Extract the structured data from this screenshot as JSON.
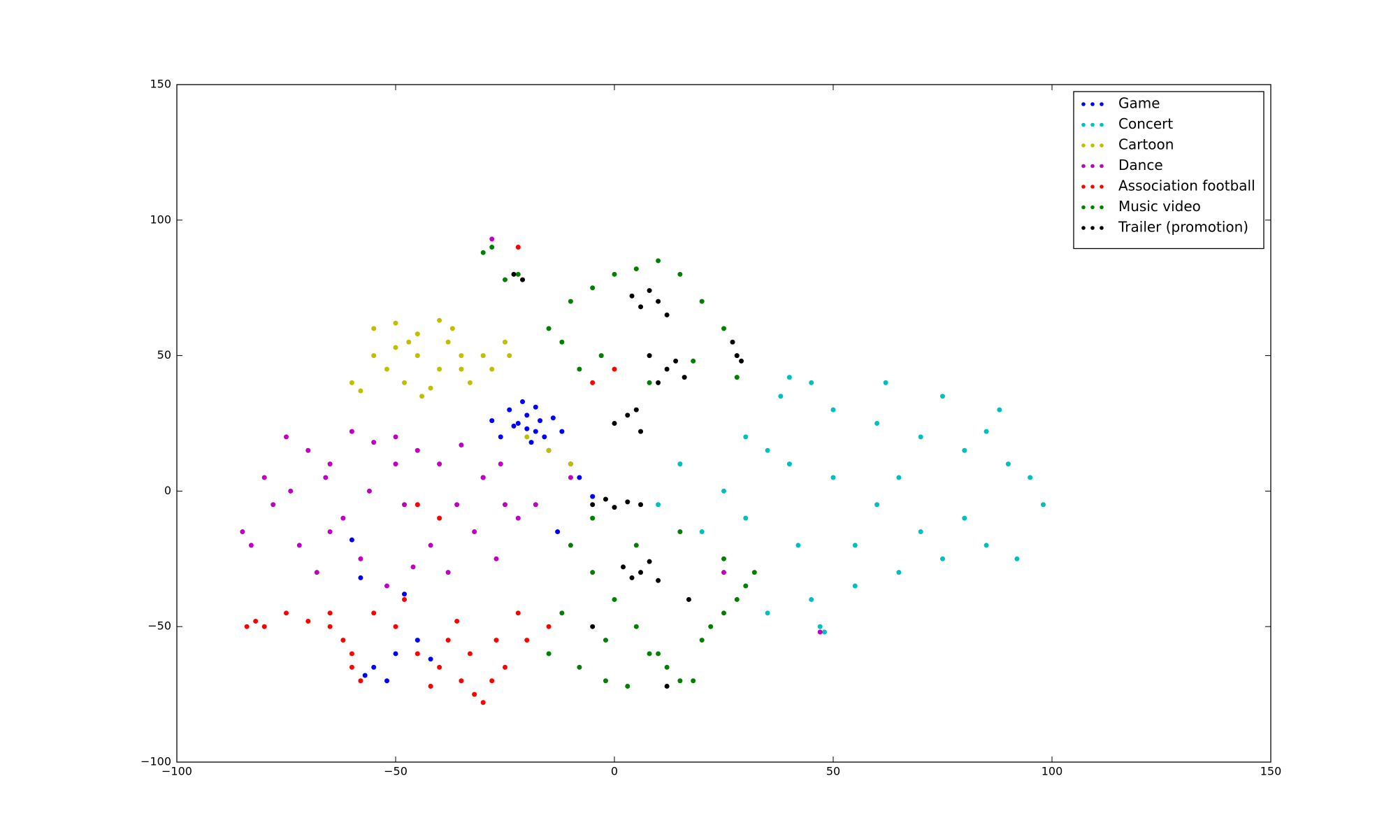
{
  "chart_data": {
    "type": "scatter",
    "xlim": [
      -100,
      150
    ],
    "ylim": [
      -100,
      150
    ],
    "xticks": [
      {
        "value": -100,
        "label": "−100"
      },
      {
        "value": -50,
        "label": "−50"
      },
      0,
      50,
      100,
      150
    ],
    "yticks": [
      {
        "value": -100,
        "label": "−100"
      },
      {
        "value": -50,
        "label": "−50"
      },
      0,
      50,
      100,
      150
    ],
    "grid": false,
    "legend": "upper right",
    "series": [
      {
        "name": "Game",
        "color": "#0000ff",
        "x": [
          -22,
          -20,
          -18,
          -16,
          -24,
          -19,
          -21,
          -17,
          -15,
          -23,
          -26,
          -14,
          -20,
          -18,
          -12,
          -28,
          -10,
          -8,
          -55,
          -57,
          -52,
          -50,
          -58,
          -45,
          -60,
          -5,
          -13,
          -30,
          -42,
          -48
        ],
        "y": [
          25,
          28,
          22,
          20,
          30,
          18,
          33,
          26,
          15,
          24,
          20,
          27,
          23,
          31,
          22,
          26,
          10,
          5,
          -65,
          -68,
          -70,
          -60,
          -32,
          -55,
          -18,
          -2,
          -15,
          5,
          -62,
          -38
        ]
      },
      {
        "name": "Concert",
        "color": "#00bfbf",
        "x": [
          40,
          45,
          38,
          50,
          60,
          70,
          80,
          90,
          95,
          98,
          85,
          75,
          65,
          55,
          45,
          35,
          30,
          25,
          40,
          50,
          60,
          70,
          80,
          88,
          92,
          48,
          42,
          35,
          65,
          75,
          55,
          20,
          15,
          10,
          47,
          30,
          85,
          62
        ],
        "y": [
          42,
          40,
          35,
          30,
          25,
          20,
          15,
          10,
          5,
          -5,
          -20,
          -25,
          -30,
          -35,
          -40,
          -45,
          -10,
          0,
          10,
          5,
          -5,
          -15,
          -10,
          30,
          -25,
          -52,
          -20,
          15,
          5,
          35,
          -20,
          -15,
          10,
          -5,
          -50,
          20,
          22,
          40
        ]
      },
      {
        "name": "Cartoon",
        "color": "#bfbf00",
        "x": [
          -55,
          -50,
          -45,
          -40,
          -38,
          -35,
          -52,
          -48,
          -42,
          -58,
          -60,
          -45,
          -40,
          -33,
          -30,
          -25,
          -24,
          -50,
          -44,
          -37,
          -28,
          -47,
          -55,
          -35,
          -20,
          -15,
          -10
        ],
        "y": [
          60,
          62,
          58,
          63,
          55,
          50,
          45,
          40,
          38,
          37,
          40,
          50,
          45,
          40,
          50,
          55,
          50,
          53,
          35,
          60,
          45,
          55,
          50,
          45,
          20,
          15,
          10
        ]
      },
      {
        "name": "Dance",
        "color": "#bf00bf",
        "x": [
          -85,
          -80,
          -75,
          -70,
          -65,
          -60,
          -55,
          -50,
          -45,
          -40,
          -35,
          -30,
          -25,
          -78,
          -72,
          -68,
          -62,
          -58,
          -52,
          -48,
          -42,
          -38,
          -32,
          -27,
          -22,
          -83,
          -74,
          -66,
          -56,
          -46,
          -36,
          -26,
          -28,
          -18,
          -65,
          -50,
          -10,
          47,
          25
        ],
        "y": [
          -15,
          5,
          20,
          15,
          10,
          22,
          18,
          20,
          15,
          10,
          17,
          5,
          -5,
          -5,
          -20,
          -30,
          -10,
          -25,
          -35,
          -5,
          -20,
          -30,
          -15,
          -25,
          -10,
          -20,
          0,
          5,
          0,
          -28,
          -5,
          10,
          93,
          -5,
          -15,
          10,
          5,
          -52,
          -30
        ]
      },
      {
        "name": "Association football",
        "color": "#ff0000",
        "x": [
          -84,
          -82,
          -80,
          -75,
          -70,
          -65,
          -62,
          -60,
          -58,
          -55,
          -50,
          -45,
          -40,
          -35,
          -32,
          -30,
          -28,
          -25,
          -22,
          -38,
          -42,
          -33,
          -36,
          -27,
          -60,
          -65,
          -48,
          -20,
          -15,
          -5,
          0,
          -45,
          -40,
          -22
        ],
        "y": [
          -50,
          -48,
          -50,
          -45,
          -48,
          -50,
          -55,
          -60,
          -70,
          -45,
          -50,
          -60,
          -65,
          -70,
          -75,
          -78,
          -70,
          -65,
          -45,
          -55,
          -72,
          -60,
          -48,
          -55,
          -65,
          -45,
          -40,
          -55,
          -50,
          40,
          45,
          -5,
          -10,
          90
        ]
      },
      {
        "name": "Music video",
        "color": "#008000",
        "x": [
          -30,
          -28,
          -25,
          -22,
          -15,
          -10,
          -5,
          0,
          5,
          10,
          15,
          20,
          25,
          -12,
          -8,
          -3,
          8,
          18,
          28,
          -10,
          -5,
          0,
          5,
          10,
          15,
          20,
          25,
          30,
          -15,
          -8,
          -2,
          3,
          12,
          22,
          32,
          -5,
          5,
          15,
          25,
          -12,
          -2,
          8,
          18,
          28
        ],
        "y": [
          88,
          90,
          78,
          80,
          60,
          70,
          75,
          80,
          82,
          85,
          80,
          70,
          60,
          55,
          45,
          50,
          40,
          48,
          42,
          -20,
          -30,
          -40,
          -50,
          -60,
          -70,
          -55,
          -45,
          -35,
          -60,
          -65,
          -70,
          -72,
          -65,
          -50,
          -30,
          -10,
          -20,
          -15,
          -25,
          -45,
          -55,
          -60,
          -70,
          -40
        ]
      },
      {
        "name": "Trailer (promotion)",
        "color": "#000000",
        "x": [
          4,
          6,
          8,
          10,
          12,
          8,
          12,
          14,
          16,
          10,
          27,
          28,
          29,
          -5,
          -2,
          0,
          3,
          6,
          2,
          4,
          6,
          8,
          10,
          0,
          3,
          6,
          -23,
          -21,
          5,
          17,
          -5,
          12
        ],
        "y": [
          72,
          68,
          74,
          70,
          65,
          50,
          45,
          48,
          42,
          40,
          55,
          50,
          48,
          -5,
          -3,
          -6,
          -4,
          -5,
          -28,
          -32,
          -30,
          -26,
          -33,
          25,
          28,
          22,
          80,
          78,
          30,
          -40,
          -50,
          -72
        ]
      }
    ]
  }
}
